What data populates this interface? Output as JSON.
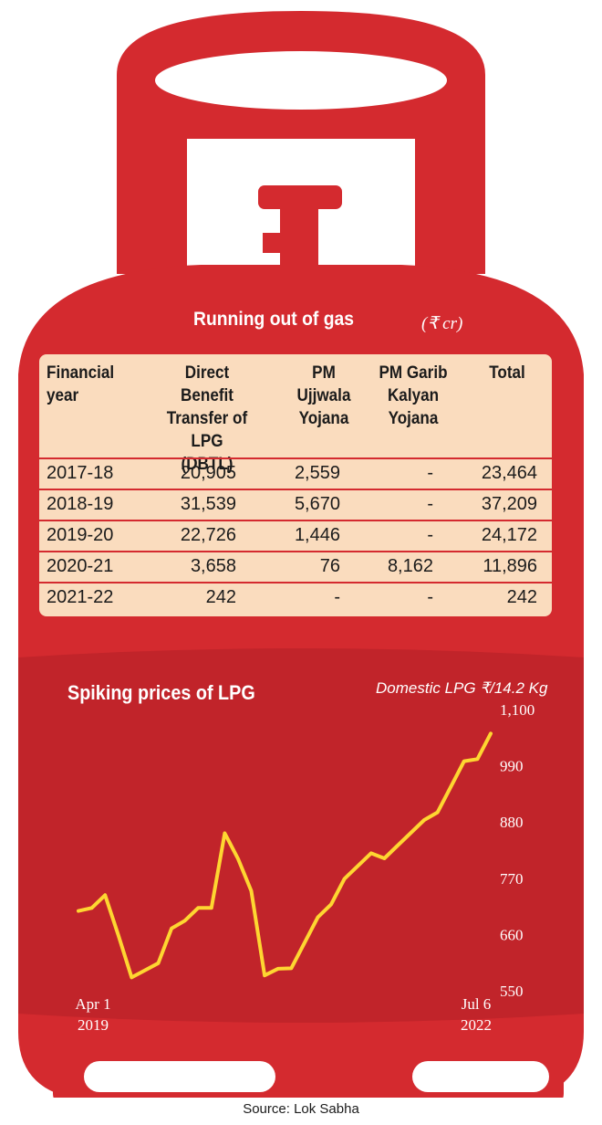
{
  "colors": {
    "cylinder_red": "#d42a2f",
    "chart_red": "#c1242a",
    "table_bg": "#fadcbe",
    "line_yellow": "#fed631"
  },
  "table": {
    "title": "Running out of gas",
    "unit": "(₹ cr)",
    "headers": [
      "Financial\nyear",
      "Direct\nBenefit\nTransfer of\nLPG (DBTL)",
      "PM\nUjjwala\nYojana",
      "PM Garib\nKalyan\nYojana",
      "Total"
    ],
    "rows": [
      [
        "2017-18",
        "20,905",
        "2,559",
        "-",
        "23,464"
      ],
      [
        "2018-19",
        "31,539",
        "5,670",
        "-",
        "37,209"
      ],
      [
        "2019-20",
        "22,726",
        "1,446",
        "-",
        "24,172"
      ],
      [
        "2020-21",
        "3,658",
        "76",
        "8,162",
        "11,896"
      ],
      [
        "2021-22",
        "242",
        "-",
        "-",
        "242"
      ]
    ]
  },
  "chart_data": {
    "type": "line",
    "title": "Spiking prices of LPG",
    "ylabel": "Domestic LPG ₹/14.2 Kg",
    "ylim": [
      550,
      1100
    ],
    "yticks": [
      "1,100",
      "990",
      "880",
      "770",
      "660",
      "550"
    ],
    "ytick_values": [
      1100,
      990,
      880,
      770,
      660,
      550
    ],
    "x_start_label": [
      "Apr 1",
      "2019"
    ],
    "x_end_label": [
      "Jul 6",
      "2022"
    ],
    "x": [
      0,
      1,
      2,
      3,
      4,
      5,
      6,
      7,
      8,
      9,
      10,
      11,
      12,
      13,
      14,
      15,
      16,
      17,
      18,
      19,
      20,
      21,
      22,
      23,
      24,
      25,
      26,
      27,
      28,
      29,
      30,
      31
    ],
    "values": [
      706,
      712,
      737,
      659,
      576,
      590,
      604,
      672,
      687,
      712,
      712,
      858,
      808,
      745,
      580,
      593,
      594,
      644,
      694,
      719,
      769,
      794,
      819,
      809,
      834,
      859,
      884,
      899,
      949,
      999,
      1003,
      1053
    ]
  },
  "source": "Source: Lok Sabha"
}
